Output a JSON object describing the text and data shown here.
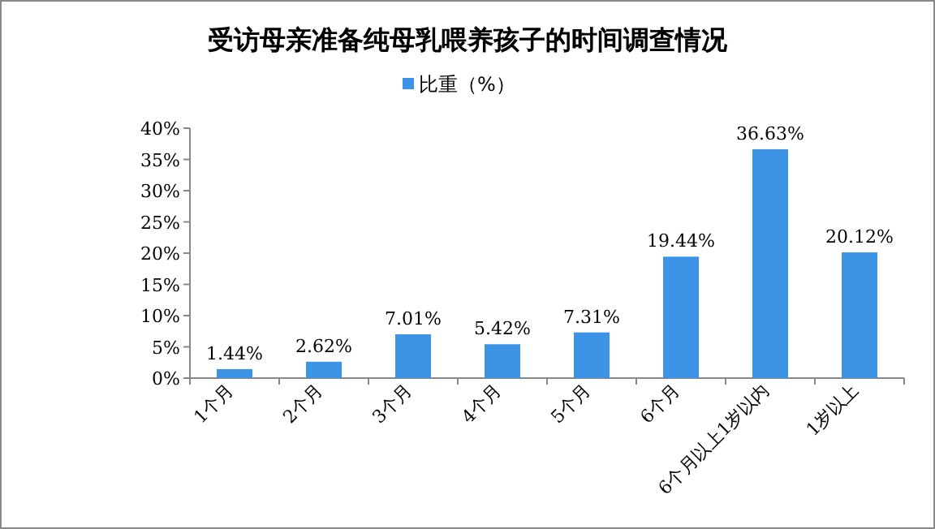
{
  "chart_data": {
    "type": "bar",
    "title": "受访母亲准备纯母乳喂养孩子的时间调查情况",
    "categories": [
      "1个月",
      "2个月",
      "3个月",
      "4个月",
      "5个月",
      "6个月",
      "6个月以上1岁以内",
      "1岁以上"
    ],
    "series": [
      {
        "name": "比重（%）",
        "color": "#3d94e6",
        "values": [
          1.44,
          2.62,
          7.01,
          5.42,
          7.31,
          19.44,
          36.63,
          20.12
        ],
        "value_labels": [
          "1.44%",
          "2.62%",
          "7.01%",
          "5.42%",
          "7.31%",
          "19.44%",
          "36.63%",
          "20.12%"
        ]
      }
    ],
    "ylim": [
      0,
      40
    ],
    "yticks": [
      {
        "value": 0,
        "label": "0%"
      },
      {
        "value": 5,
        "label": "5%"
      },
      {
        "value": 10,
        "label": "10%"
      },
      {
        "value": 15,
        "label": "15%"
      },
      {
        "value": 20,
        "label": "20%"
      },
      {
        "value": 25,
        "label": "25%"
      },
      {
        "value": 30,
        "label": "30%"
      },
      {
        "value": 35,
        "label": "35%"
      },
      {
        "value": 40,
        "label": "40%"
      }
    ],
    "legend": "top",
    "grid": false
  }
}
